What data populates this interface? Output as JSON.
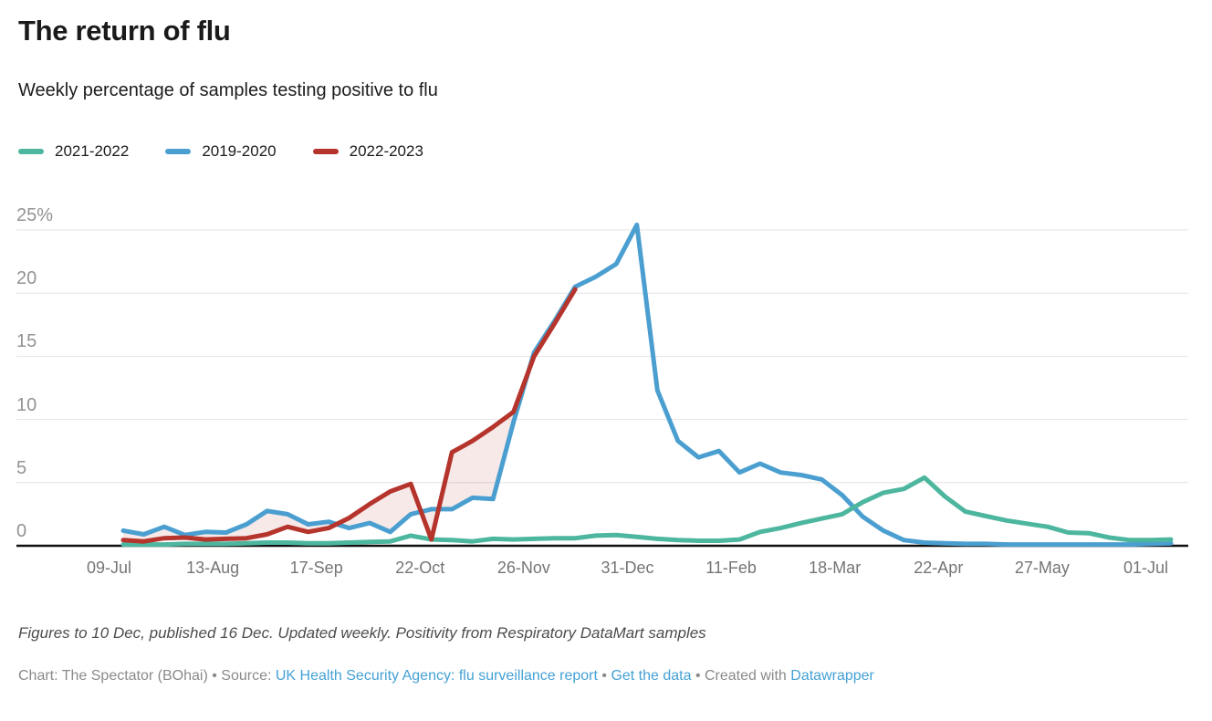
{
  "header": {
    "title": "The return of flu",
    "subtitle": "Weekly percentage of samples testing positive to flu"
  },
  "legend": {
    "items": [
      {
        "label": "2021-2022",
        "color": "#4db69e"
      },
      {
        "label": "2019-2020",
        "color": "#4a9fd0"
      },
      {
        "label": "2022-2023",
        "color": "#b5342c"
      }
    ]
  },
  "chart_data": {
    "type": "line",
    "title": "The return of flu",
    "subtitle": "Weekly percentage of samples testing positive to flu",
    "unit": "%",
    "x_tick_labels": [
      "09-Jul",
      "13-Aug",
      "17-Sep",
      "22-Oct",
      "26-Nov",
      "31-Dec",
      "11-Feb",
      "18-Mar",
      "22-Apr",
      "27-May",
      "01-Jul"
    ],
    "y_ticks": [
      {
        "value": 0,
        "label": "0"
      },
      {
        "value": 5,
        "label": "5"
      },
      {
        "value": 10,
        "label": "10"
      },
      {
        "value": 15,
        "label": "15"
      },
      {
        "value": 20,
        "label": "20"
      },
      {
        "value": 25,
        "label": "25%"
      }
    ],
    "ylim": [
      0,
      25.5
    ],
    "x_axis_note": "weekly points, 09-Jul through 01-Jul season",
    "grid": true,
    "legend_position": "top-left",
    "series": [
      {
        "name": "2021-2022",
        "color": "#4db69e",
        "start_week": 0,
        "values": [
          0.1,
          0.1,
          0.1,
          0.15,
          0.15,
          0.15,
          0.2,
          0.25,
          0.25,
          0.2,
          0.2,
          0.25,
          0.3,
          0.35,
          0.8,
          0.5,
          0.45,
          0.35,
          0.55,
          0.5,
          0.55,
          0.6,
          0.6,
          0.8,
          0.85,
          0.7,
          0.55,
          0.45,
          0.4,
          0.4,
          0.5,
          1.1,
          1.4,
          1.8,
          2.15,
          2.5,
          3.45,
          4.2,
          4.5,
          5.4,
          3.9,
          2.7,
          2.35,
          2.0,
          1.75,
          1.5,
          1.05,
          1.0,
          0.65,
          0.45,
          0.45,
          0.5
        ]
      },
      {
        "name": "2019-2020",
        "color": "#4a9fd0",
        "start_week": 0,
        "values": [
          1.2,
          0.9,
          1.5,
          0.85,
          1.1,
          1.05,
          1.7,
          2.75,
          2.5,
          1.7,
          1.9,
          1.4,
          1.8,
          1.1,
          2.5,
          2.9,
          2.9,
          3.8,
          3.7,
          9.8,
          15.3,
          17.8,
          20.5,
          21.3,
          22.3,
          25.4,
          12.3,
          8.3,
          7.0,
          7.5,
          5.8,
          6.5,
          5.8,
          5.6,
          5.25,
          4.0,
          2.3,
          1.2,
          0.45,
          0.25,
          0.2,
          0.15,
          0.15,
          0.1,
          0.1,
          0.1,
          0.1,
          0.1,
          0.1,
          0.1,
          0.15,
          0.2
        ]
      },
      {
        "name": "2022-2023",
        "color": "#b5342c",
        "start_week": 0,
        "values": [
          0.45,
          0.35,
          0.6,
          0.65,
          0.5,
          0.55,
          0.6,
          0.9,
          1.5,
          1.1,
          1.4,
          2.2,
          3.3,
          4.3,
          4.9,
          0.5,
          7.4,
          8.3,
          9.4,
          10.6,
          15.0,
          17.6,
          20.3
        ]
      }
    ],
    "fill_between": {
      "series_a": "2019-2020",
      "series_b": "2022-2023",
      "color": "rgba(181,52,44,0.11)"
    }
  },
  "footer": {
    "note": "Figures to 10 Dec, published 16 Dec. Updated weekly. Positivity from Respiratory DataMart samples",
    "link_color": "#45a1d5",
    "byline": [
      {
        "text": "Chart: The Spectator (BOhai) • Source: ",
        "link": false
      },
      {
        "text": "UK Health Security Agency: flu surveillance report",
        "link": true
      },
      {
        "text": " • ",
        "link": false
      },
      {
        "text": "Get the data",
        "link": true
      },
      {
        "text": " • Created with ",
        "link": false
      },
      {
        "text": "Datawrapper",
        "link": true
      }
    ]
  }
}
